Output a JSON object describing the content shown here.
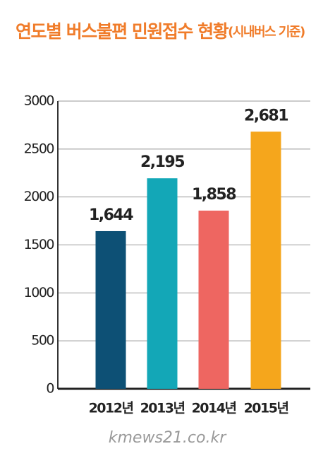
{
  "chart_data": {
    "type": "bar",
    "title": "연도별 버스불편 민원접수 현황",
    "subtitle": "(시내버스 기준)",
    "categories": [
      "2012년",
      "2013년",
      "2014년",
      "2015년"
    ],
    "values": [
      1644,
      2195,
      1858,
      2681
    ],
    "value_labels": [
      "1,644",
      "2,195",
      "1,858",
      "2,681"
    ],
    "colors": [
      "#0d5075",
      "#13a7b7",
      "#ee6661",
      "#f5a61c"
    ],
    "ylim": [
      0,
      3000
    ],
    "yticks": [
      0,
      500,
      1000,
      1500,
      2000,
      2500,
      3000
    ],
    "grid": true,
    "source": "kmews21.co.kr"
  }
}
